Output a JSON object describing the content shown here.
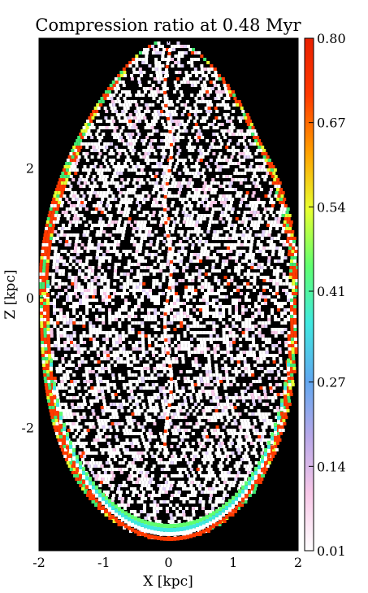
{
  "chart_data": {
    "type": "heatmap",
    "title": "Compression ratio at  0.48 Myr",
    "xlabel": "X [kpc]",
    "ylabel": "Z [kpc]",
    "xlim": [
      -2,
      2
    ],
    "ylim": [
      -3.9,
      4.0
    ],
    "x_ticks": [
      -2,
      -1,
      0,
      1,
      2
    ],
    "x_tick_labels": [
      "-2",
      "-1",
      "0",
      "1",
      "2"
    ],
    "y_ticks": [
      -2,
      0,
      2
    ],
    "y_tick_labels": [
      "-2",
      "0",
      "2"
    ],
    "colorbar": {
      "min": 0.01,
      "max": 0.8,
      "ticks": [
        0.8,
        0.67,
        0.54,
        0.41,
        0.27,
        0.14,
        0.01
      ],
      "tick_labels": [
        "0.80",
        "0.67",
        "0.54",
        "0.41",
        "0.27",
        "0.14",
        "0.01"
      ],
      "colors": [
        "#ffffff",
        "#f8c8e8",
        "#b8a8e8",
        "#60a8f0",
        "#40e8e0",
        "#60ff70",
        "#e8ff30",
        "#ffa000",
        "#ff3a00",
        "#e82000"
      ]
    },
    "background_color": "#000000",
    "grid": false
  }
}
